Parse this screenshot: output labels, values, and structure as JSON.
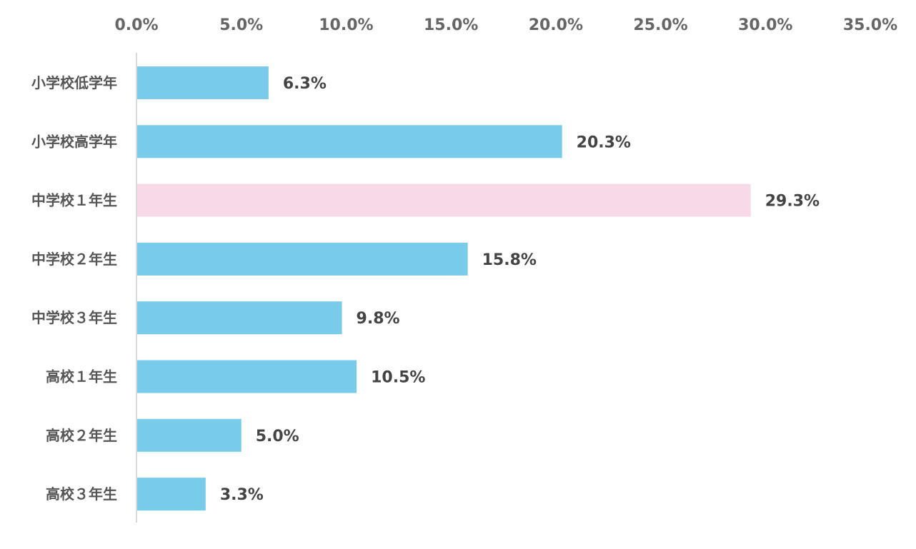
{
  "chart_data": {
    "type": "bar",
    "orientation": "horizontal",
    "categories": [
      "小学校低学年",
      "小学校高学年",
      "中学校１年生",
      "中学校２年生",
      "中学校３年生",
      "高校１年生",
      "高校２年生",
      "高校３年生"
    ],
    "values": [
      6.3,
      20.3,
      29.3,
      15.8,
      9.8,
      10.5,
      5.0,
      3.3
    ],
    "value_labels": [
      "6.3%",
      "20.3%",
      "29.3%",
      "15.8%",
      "9.8%",
      "10.5%",
      "5.0%",
      "3.3%"
    ],
    "xticks": [
      0,
      5,
      10,
      15,
      20,
      25,
      30,
      35
    ],
    "xtick_labels": [
      "0.0%",
      "5.0%",
      "10.0%",
      "15.0%",
      "20.0%",
      "25.0%",
      "30.0%",
      "35.0%"
    ],
    "xlim": [
      0,
      35
    ],
    "xaxis_position": "top",
    "grid": false,
    "highlight_index": 2,
    "colors": {
      "bar": "#78CBEB",
      "highlight": "#F7D9E8",
      "axis": "#D9D9D9"
    },
    "title": "",
    "xlabel": "",
    "ylabel": ""
  }
}
